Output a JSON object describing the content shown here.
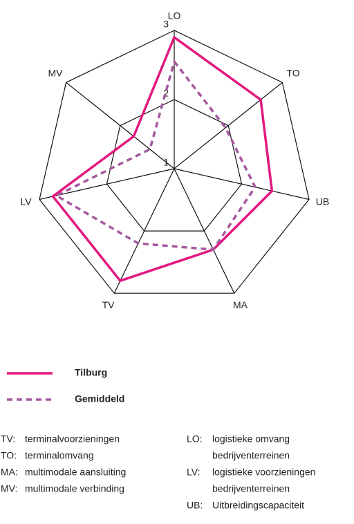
{
  "chart_data": {
    "type": "radar",
    "categories": [
      "LO",
      "TO",
      "UB",
      "MA",
      "TV",
      "LV",
      "MV"
    ],
    "rlim": [
      1,
      3
    ],
    "rticks": [
      1,
      2,
      3
    ],
    "series": [
      {
        "name": "Tilburg",
        "color": "#e2187f",
        "dash": false,
        "values": [
          2.9,
          2.6,
          2.45,
          2.3,
          2.8,
          2.8,
          1.75
        ]
      },
      {
        "name": "Gemiddeld",
        "color": "#a4589e",
        "dash": true,
        "values": [
          2.55,
          1.95,
          2.2,
          2.3,
          2.2,
          2.75,
          1.45
        ]
      }
    ]
  },
  "glossary": {
    "left": [
      {
        "abbr": "TV:",
        "lines": [
          "terminalvoorzieningen"
        ]
      },
      {
        "abbr": "TO:",
        "lines": [
          "terminalomvang"
        ]
      },
      {
        "abbr": "MA:",
        "lines": [
          "multimodale aansluiting"
        ]
      },
      {
        "abbr": "MV:",
        "lines": [
          "multimodale verbinding"
        ]
      }
    ],
    "right": [
      {
        "abbr": "LO:",
        "lines": [
          "logistieke omvang",
          "bedrijventerreinen"
        ]
      },
      {
        "abbr": "LV:",
        "lines": [
          "logistieke voorzieningen",
          "bedrijventerreinen"
        ]
      },
      {
        "abbr": "UB:",
        "lines": [
          "Uitbreidingscapaciteit"
        ]
      }
    ]
  }
}
